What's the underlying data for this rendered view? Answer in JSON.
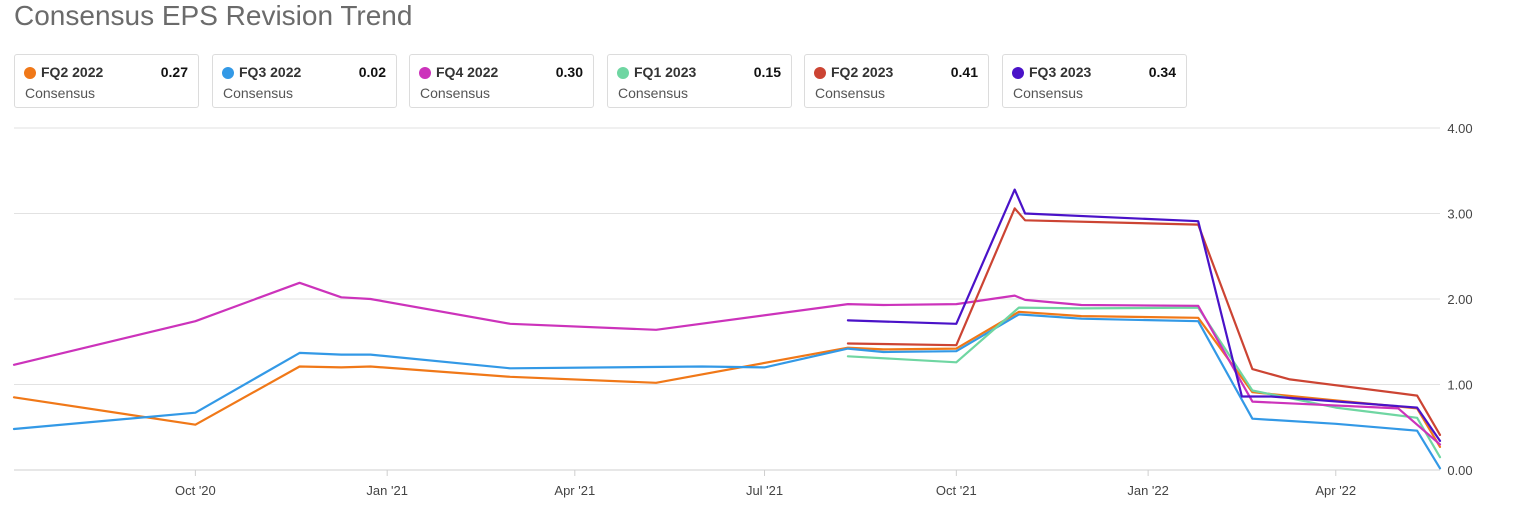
{
  "chart_data": {
    "type": "line",
    "title": "Consensus EPS Revision Trend",
    "xlabel": "",
    "ylabel": "",
    "ylim": [
      0,
      4
    ],
    "y_ticks": [
      "0.00",
      "1.00",
      "2.00",
      "3.00",
      "4.00"
    ],
    "x_ticks": [
      {
        "label": "Oct '20",
        "date": "2020-10-01"
      },
      {
        "label": "Jan '21",
        "date": "2021-01-01"
      },
      {
        "label": "Apr '21",
        "date": "2021-04-01"
      },
      {
        "label": "Jul '21",
        "date": "2021-07-01"
      },
      {
        "label": "Oct '21",
        "date": "2021-10-01"
      },
      {
        "label": "Jan '22",
        "date": "2022-01-01"
      },
      {
        "label": "Apr '22",
        "date": "2022-04-01"
      }
    ],
    "x_range": [
      "2020-07-06",
      "2022-05-21"
    ],
    "grid": "horizontal",
    "legend_position": "top",
    "series": [
      {
        "name": "FQ4 2022",
        "latest": "0.30",
        "sub": "Consensus",
        "color": "#cc33bb",
        "points": [
          [
            "2020-07-06",
            1.23
          ],
          [
            "2020-10-01",
            1.74
          ],
          [
            "2020-11-20",
            2.19
          ],
          [
            "2020-12-10",
            2.02
          ],
          [
            "2020-12-24",
            2.0
          ],
          [
            "2021-03-01",
            1.71
          ],
          [
            "2021-05-10",
            1.64
          ],
          [
            "2021-08-10",
            1.94
          ],
          [
            "2021-08-27",
            1.93
          ],
          [
            "2021-10-01",
            1.94
          ],
          [
            "2021-10-29",
            2.04
          ],
          [
            "2021-11-03",
            1.99
          ],
          [
            "2021-11-30",
            1.93
          ],
          [
            "2022-01-25",
            1.92
          ],
          [
            "2022-02-20",
            0.8
          ],
          [
            "2022-05-01",
            0.72
          ],
          [
            "2022-05-21",
            0.3
          ]
        ]
      },
      {
        "name": "FQ3 2022",
        "latest": "0.02",
        "sub": "Consensus",
        "color": "#3399e6",
        "points": [
          [
            "2020-07-06",
            0.48
          ],
          [
            "2020-10-01",
            0.67
          ],
          [
            "2020-11-20",
            1.37
          ],
          [
            "2020-12-10",
            1.35
          ],
          [
            "2020-12-24",
            1.35
          ],
          [
            "2021-03-01",
            1.19
          ],
          [
            "2021-06-01",
            1.21
          ],
          [
            "2021-07-01",
            1.2
          ],
          [
            "2021-08-10",
            1.42
          ],
          [
            "2021-08-27",
            1.38
          ],
          [
            "2021-10-01",
            1.39
          ],
          [
            "2021-10-31",
            1.82
          ],
          [
            "2021-11-30",
            1.77
          ],
          [
            "2022-01-25",
            1.74
          ],
          [
            "2022-02-20",
            0.6
          ],
          [
            "2022-04-01",
            0.54
          ],
          [
            "2022-05-10",
            0.46
          ],
          [
            "2022-05-21",
            0.02
          ]
        ]
      },
      {
        "name": "FQ2 2022",
        "latest": "0.27",
        "sub": "Consensus",
        "color": "#f07818",
        "points": [
          [
            "2020-07-06",
            0.85
          ],
          [
            "2020-10-01",
            0.53
          ],
          [
            "2020-11-20",
            1.21
          ],
          [
            "2020-12-10",
            1.2
          ],
          [
            "2020-12-24",
            1.21
          ],
          [
            "2021-03-01",
            1.09
          ],
          [
            "2021-05-10",
            1.02
          ],
          [
            "2021-08-10",
            1.43
          ],
          [
            "2021-08-27",
            1.41
          ],
          [
            "2021-10-01",
            1.42
          ],
          [
            "2021-10-31",
            1.85
          ],
          [
            "2021-11-30",
            1.8
          ],
          [
            "2022-01-25",
            1.78
          ],
          [
            "2022-02-20",
            0.91
          ],
          [
            "2022-05-10",
            0.72
          ],
          [
            "2022-05-21",
            0.27
          ]
        ]
      },
      {
        "name": "FQ1 2023",
        "latest": "0.15",
        "sub": "Consensus",
        "color": "#6fd6a2",
        "points": [
          [
            "2021-08-10",
            1.33
          ],
          [
            "2021-10-01",
            1.26
          ],
          [
            "2021-10-31",
            1.9
          ],
          [
            "2021-11-30",
            1.89
          ],
          [
            "2022-01-25",
            1.9
          ],
          [
            "2022-02-20",
            0.93
          ],
          [
            "2022-04-01",
            0.73
          ],
          [
            "2022-05-10",
            0.61
          ],
          [
            "2022-05-21",
            0.15
          ]
        ]
      },
      {
        "name": "FQ2 2023",
        "latest": "0.41",
        "sub": "Consensus",
        "color": "#cc4433",
        "points": [
          [
            "2021-08-10",
            1.48
          ],
          [
            "2021-10-01",
            1.46
          ],
          [
            "2021-10-29",
            3.06
          ],
          [
            "2021-11-03",
            2.92
          ],
          [
            "2022-01-25",
            2.87
          ],
          [
            "2022-02-20",
            1.18
          ],
          [
            "2022-03-10",
            1.06
          ],
          [
            "2022-05-10",
            0.87
          ],
          [
            "2022-05-21",
            0.41
          ]
        ]
      },
      {
        "name": "FQ3 2023",
        "latest": "0.34",
        "sub": "Consensus",
        "color": "#4a12c8",
        "points": [
          [
            "2021-08-10",
            1.75
          ],
          [
            "2021-10-01",
            1.71
          ],
          [
            "2021-10-29",
            3.28
          ],
          [
            "2021-11-03",
            3.0
          ],
          [
            "2022-01-25",
            2.91
          ],
          [
            "2022-02-15",
            0.86
          ],
          [
            "2022-03-01",
            0.86
          ],
          [
            "2022-05-10",
            0.73
          ],
          [
            "2022-05-21",
            0.34
          ]
        ]
      }
    ],
    "legend_order": [
      "FQ2 2022",
      "FQ3 2022",
      "FQ4 2022",
      "FQ1 2023",
      "FQ2 2023",
      "FQ3 2023"
    ]
  }
}
